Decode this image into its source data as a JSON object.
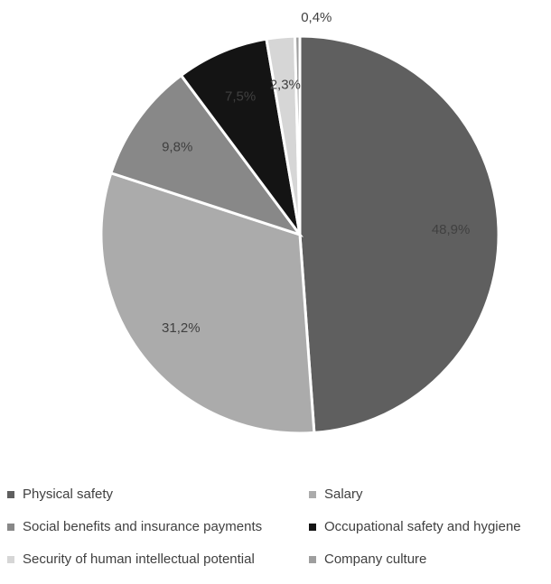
{
  "chart_data": {
    "type": "pie",
    "title": "",
    "start_angle_deg": 0,
    "direction": "clockwise",
    "legend_position": "bottom",
    "slices": [
      {
        "label": "Physical safety",
        "value": 48.9,
        "display": "48,9%",
        "color": "#5f5f5f",
        "label_color": "#404040"
      },
      {
        "label": "Salary",
        "value": 31.2,
        "display": "31,2%",
        "color": "#ababab",
        "label_color": "#404040"
      },
      {
        "label": "Social benefits and insurance payments",
        "value": 9.8,
        "display": "9,8%",
        "color": "#888888",
        "label_color": "#404040"
      },
      {
        "label": "Occupational safety and hygiene",
        "value": 7.5,
        "display": "7,5%",
        "color": "#141414",
        "label_color": "#6e6e6e"
      },
      {
        "label": "Security of human intellectual potential",
        "value": 2.3,
        "display": "2,3%",
        "color": "#d6d6d6",
        "label_color": "#404040"
      },
      {
        "label": "Company culture",
        "value": 0.4,
        "display": "0,4%",
        "color": "#9e9e9e",
        "label_color": "#404040"
      }
    ]
  }
}
